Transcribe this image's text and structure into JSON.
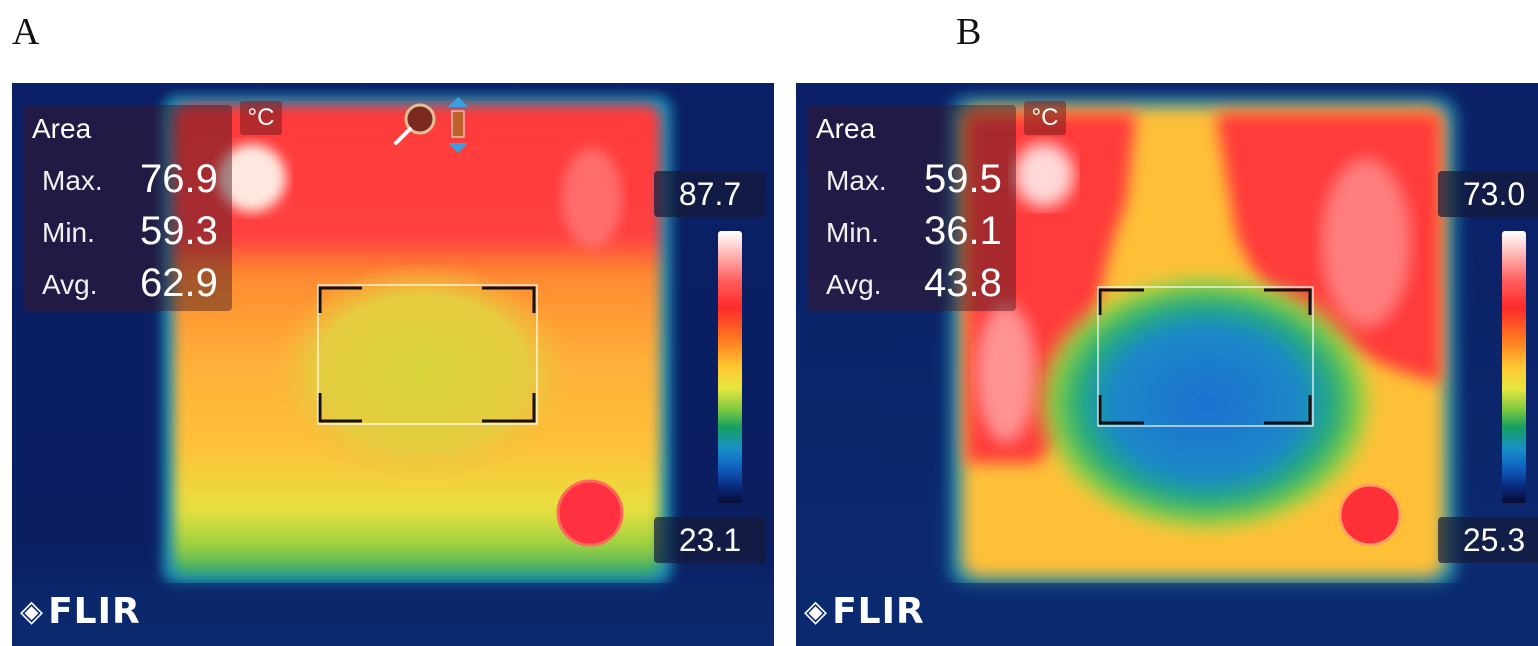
{
  "panels": [
    {
      "letter": "A",
      "area_label": "Area",
      "max_label": "Max.",
      "max_value": "76.9",
      "min_label": "Min.",
      "min_value": "59.3",
      "avg_label": "Avg.",
      "avg_value": "62.9",
      "unit": "°C",
      "scale_max": "87.7",
      "scale_min": "23.1",
      "logo": "FLIR"
    },
    {
      "letter": "B",
      "area_label": "Area",
      "max_label": "Max.",
      "max_value": "59.5",
      "min_label": "Min.",
      "min_value": "36.1",
      "avg_label": "Avg.",
      "avg_value": "43.8",
      "unit": "°C",
      "scale_max": "73.0",
      "scale_min": "25.3",
      "logo": "FLIR"
    }
  ],
  "icons": {
    "zoom": "magnifier-icon",
    "arrows": "up-down-arrows-icon",
    "logo_mark": "flir-diamond-icon"
  },
  "colors": {
    "hot": "#ff2a2a",
    "warm": "#ffc830",
    "mid": "#7ccc3c",
    "cool": "#1a7fd0",
    "background": "#0a1a5a"
  }
}
